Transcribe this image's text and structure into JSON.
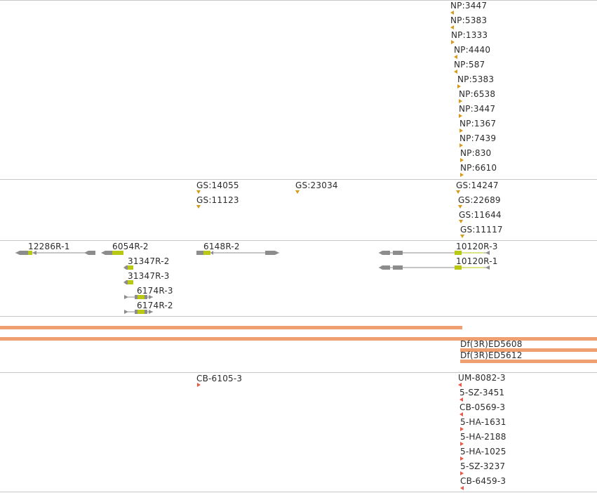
{
  "np_track": {
    "labels": [
      "NP:3447",
      "NP:5383",
      "NP:1333",
      "NP:4440",
      "NP:587",
      "NP:5383",
      "NP:6538",
      "NP:3447",
      "NP:1367",
      "NP:7439",
      "NP:830",
      "NP:6610"
    ]
  },
  "gs_track": {
    "labels": [
      "GS:14055",
      "GS:11123",
      "GS:23034",
      "GS:14247",
      "GS:22689",
      "GS:11644",
      "GS:11117"
    ]
  },
  "transcript_track": {
    "labels": [
      "12286R-1",
      "6054R-2",
      "31347R-2",
      "31347R-3",
      "6174R-3",
      "6174R-2",
      "6148R-2",
      "10120R-3",
      "10120R-1"
    ]
  },
  "deficiency_track": {
    "labels": [
      "Df(3R)ED5608",
      "Df(3R)ED5612"
    ]
  },
  "insertion_track": {
    "labels": [
      "CB-6105-3",
      "UM-8082-3",
      "5-SZ-3451",
      "CB-0569-3",
      "5-HA-1631",
      "5-HA-2188",
      "5-HA-1025",
      "5-SZ-3237",
      "CB-6459-3"
    ]
  },
  "colors": {
    "np_marker": "#d89a1a",
    "gene_gray": "#8c8c8c",
    "exon_yellow": "#b8c814",
    "deficiency_bar": "#f0a070",
    "insertion_marker": "#e85a4a",
    "separator": "#c8c8c8"
  },
  "icons": {
    "feature_marker": "triangle-marker-icon",
    "gene_arrow": "arrowhead-icon"
  }
}
